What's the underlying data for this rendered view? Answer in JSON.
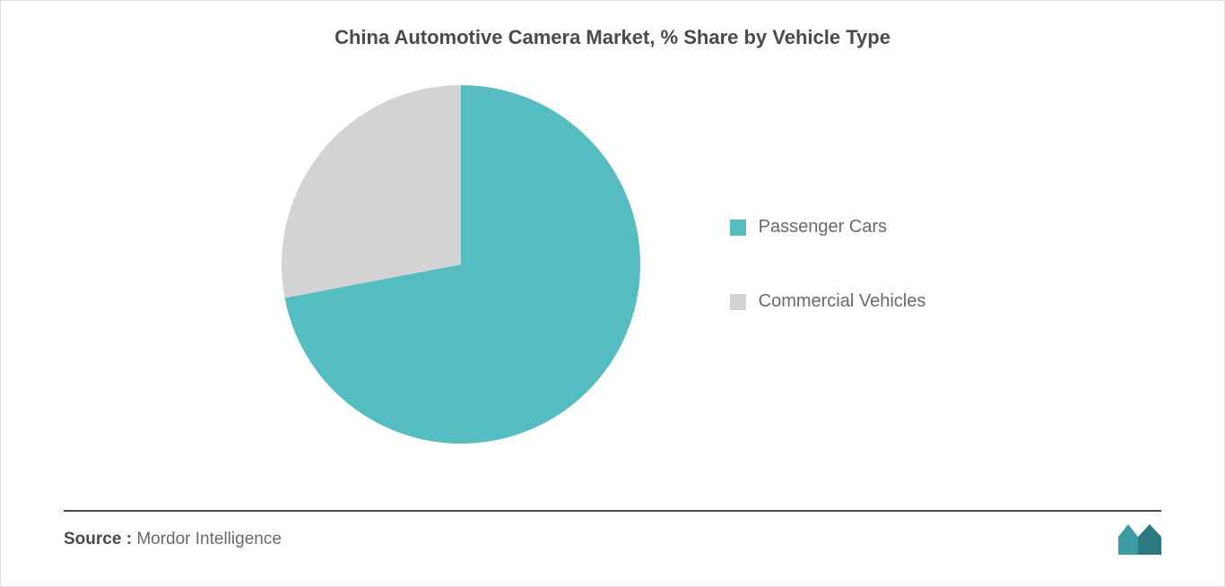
{
  "chart": {
    "type": "pie",
    "title": "China Automotive Camera Market, % Share by Vehicle Type",
    "title_fontsize": 22,
    "title_color": "#4a4a4a",
    "background_color": "#ffffff",
    "slices": [
      {
        "label": "Passenger Cars",
        "value": 72,
        "color": "#55bdc2"
      },
      {
        "label": "Commercial Vehicles",
        "value": 28,
        "color": "#d3d3d3"
      }
    ],
    "pie_radius": 200,
    "legend_fontsize": 20,
    "legend_color": "#6a6a6a",
    "legend_swatch_size": 18
  },
  "footer": {
    "source_label": "Source :",
    "source_value": "Mordor Intelligence",
    "source_fontsize": 19,
    "line_color": "#4a4a4a",
    "logo_color_1": "#3b9ca3",
    "logo_color_2": "#2a7a80"
  }
}
